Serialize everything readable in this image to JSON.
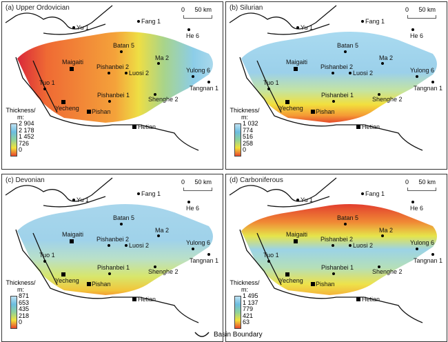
{
  "panels": [
    {
      "title": "(a) Upper Ordovician",
      "legend_title": "Thickness/\nm:",
      "legend_values": [
        "2 904",
        "2 178",
        "1 452",
        "726",
        "0"
      ]
    },
    {
      "title": "(b) Silurian",
      "legend_title": "Thickness/\nm:",
      "legend_values": [
        "1 032",
        "774",
        "516",
        "258",
        "0"
      ]
    },
    {
      "title": "(c) Devonian",
      "legend_title": "Thickness/\nm:",
      "legend_values": [
        "871",
        "653",
        "435",
        "218",
        "0"
      ]
    },
    {
      "title": "(d) Carboniferous",
      "legend_title": "Thickness/\nm:",
      "legend_values": [
        "1 495",
        "1 137",
        "779",
        "421",
        "63"
      ]
    }
  ],
  "scale_bar": {
    "zero": "0",
    "label": "50 km"
  },
  "wells": [
    "Yu 1",
    "Fang 1",
    "He 6",
    "Batan 5",
    "Ma 2",
    "Pishanbei 2",
    "Luosi 2",
    "Yulong 6",
    "Tangnan 1",
    "Tuo 1",
    "Pishanbei 1",
    "Shenghe 2"
  ],
  "cities": [
    "Maigaiti",
    "Yecheng",
    "Pishan",
    "Hetian"
  ],
  "footer": {
    "legend_label": "Basin Boundary"
  },
  "colors": {
    "thick": "#8fd0ea",
    "mid": "#f2e23a",
    "thin": "#e8462c"
  }
}
